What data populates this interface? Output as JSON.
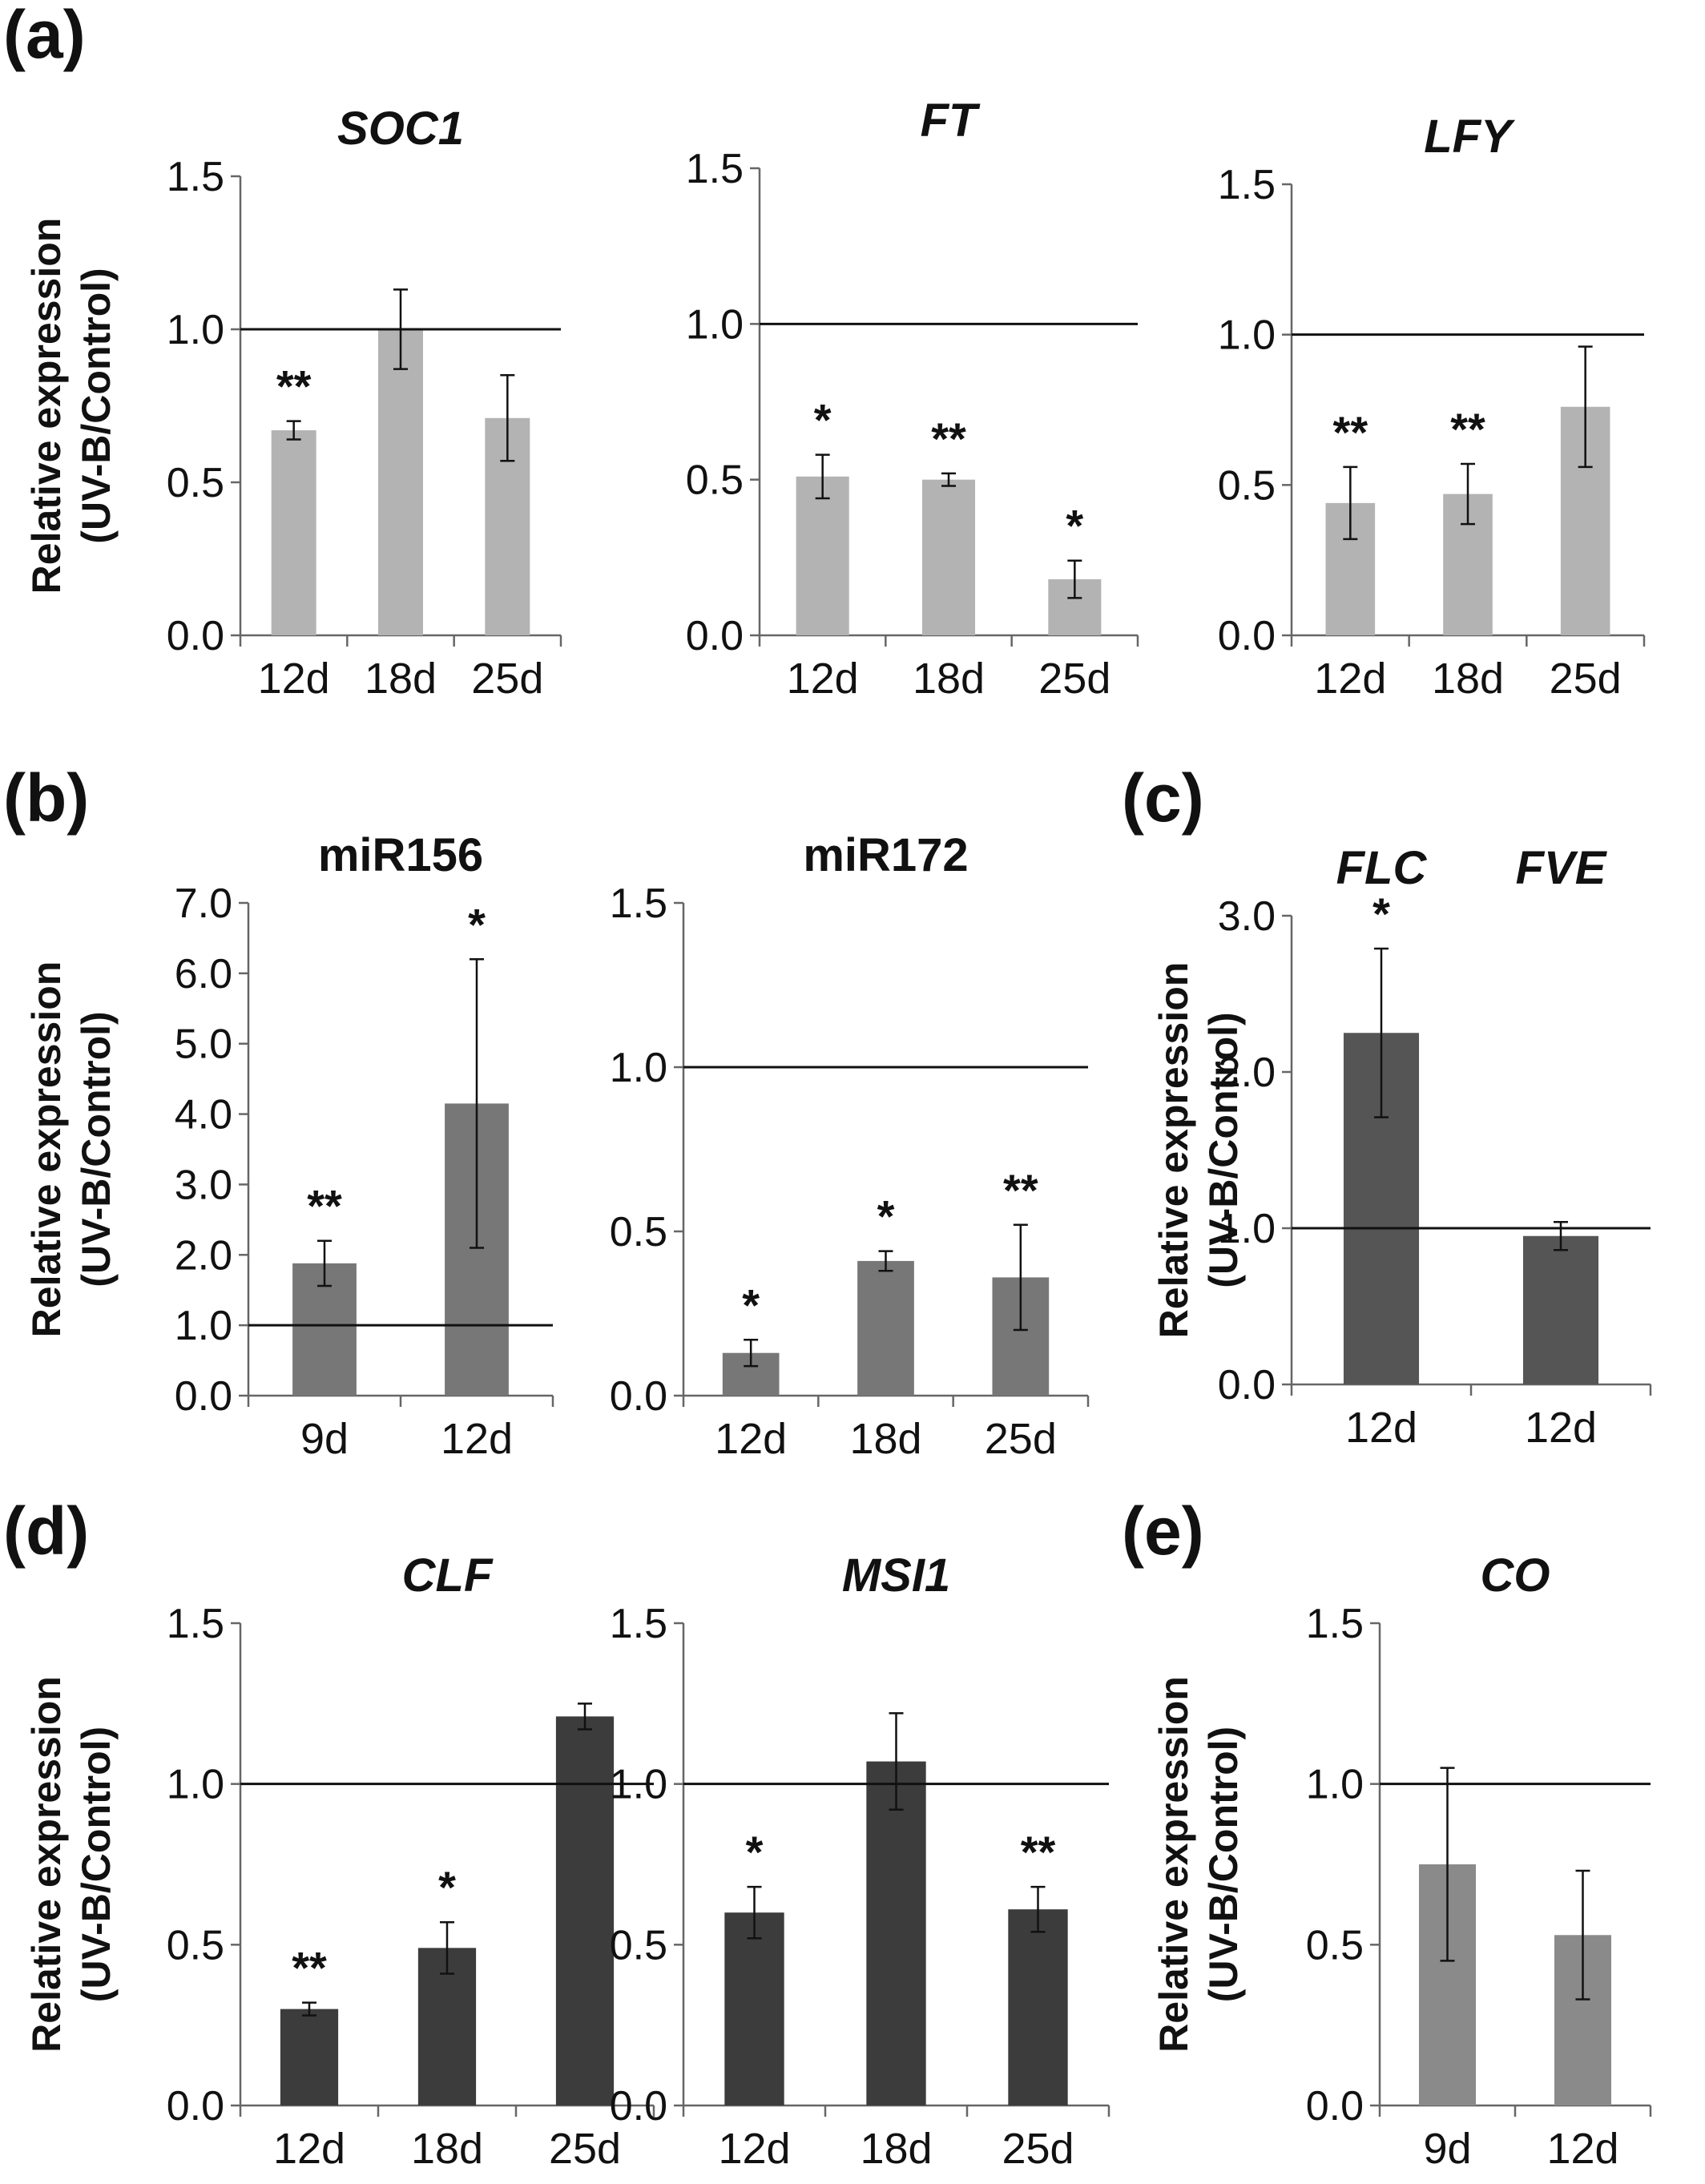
{
  "panels": [
    {
      "label": "(a)"
    },
    {
      "label": "(b)"
    },
    {
      "label": "(c)"
    },
    {
      "label": "(d)"
    },
    {
      "label": "(e)"
    }
  ],
  "y_axis_title": [
    "Relative expression",
    "(UV-B/Control)"
  ],
  "colors": {
    "light_gray": "#b3b3b3",
    "mid_gray": "#777777",
    "dark_gray": "#555555",
    "darker_gray": "#3c3c3c",
    "co_gray": "#8a8a8a",
    "axis": "#666666",
    "reference_line": "#111111"
  },
  "chart_data": [
    {
      "panel": "(a)",
      "type": "bar",
      "title": "SOC1",
      "title_italic": true,
      "categories": [
        "12d",
        "18d",
        "25d"
      ],
      "values": [
        0.67,
        1.0,
        0.71
      ],
      "errors": [
        0.03,
        0.13,
        0.14
      ],
      "significance": [
        "**",
        "",
        ""
      ],
      "yticks": [
        "0.0",
        "0.5",
        "1.0",
        "1.5"
      ],
      "ylim": [
        0,
        1.5
      ],
      "reference_line": 1.0,
      "color": "#b3b3b3"
    },
    {
      "panel": "(a)",
      "type": "bar",
      "title": "FT",
      "title_italic": true,
      "categories": [
        "12d",
        "18d",
        "25d"
      ],
      "values": [
        0.51,
        0.5,
        0.18
      ],
      "errors": [
        0.07,
        0.02,
        0.06
      ],
      "significance": [
        "*",
        "**",
        "*"
      ],
      "yticks": [
        "0.0",
        "0.5",
        "1.0",
        "1.5"
      ],
      "ylim": [
        0,
        1.5
      ],
      "reference_line": 1.0,
      "color": "#b3b3b3"
    },
    {
      "panel": "(a)",
      "type": "bar",
      "title": "LFY",
      "title_italic": true,
      "categories": [
        "12d",
        "18d",
        "25d"
      ],
      "values": [
        0.44,
        0.47,
        0.76
      ],
      "errors": [
        0.12,
        0.1,
        0.2
      ],
      "significance": [
        "**",
        "**",
        ""
      ],
      "yticks": [
        "0.0",
        "0.5",
        "1.0",
        "1.5"
      ],
      "ylim": [
        0,
        1.5
      ],
      "reference_line": 1.0,
      "color": "#b3b3b3"
    },
    {
      "panel": "(b)",
      "type": "bar",
      "title": "miR156",
      "title_italic": false,
      "categories": [
        "9d",
        "12d"
      ],
      "values": [
        1.88,
        4.15
      ],
      "errors": [
        0.32,
        2.05
      ],
      "significance": [
        "**",
        "*"
      ],
      "yticks": [
        "0.0",
        "1.0",
        "2.0",
        "3.0",
        "4.0",
        "5.0",
        "6.0",
        "7.0"
      ],
      "ylim": [
        0,
        7
      ],
      "reference_line": 1.0,
      "color": "#777777"
    },
    {
      "panel": "(b)",
      "type": "bar",
      "title": "miR172",
      "title_italic": false,
      "categories": [
        "12d",
        "18d",
        "25d"
      ],
      "values": [
        0.13,
        0.41,
        0.36
      ],
      "errors": [
        0.04,
        0.03,
        0.16
      ],
      "significance": [
        "*",
        "*",
        "**"
      ],
      "yticks": [
        "0.0",
        "0.5",
        "1.0",
        "1.5"
      ],
      "ylim": [
        0,
        1.5
      ],
      "reference_line": 1.0,
      "color": "#777777"
    },
    {
      "panel": "(c)",
      "type": "bar",
      "title": "FLC",
      "title2": "FVE",
      "title_italic": true,
      "categories": [
        "12d",
        "12d"
      ],
      "values": [
        2.25,
        0.95
      ],
      "errors": [
        0.54,
        0.09
      ],
      "significance": [
        "*",
        ""
      ],
      "yticks": [
        "0.0",
        "1.0",
        "2.0",
        "3.0"
      ],
      "ylim": [
        0,
        3
      ],
      "reference_line": 1.0,
      "color": "#555555"
    },
    {
      "panel": "(d)",
      "type": "bar",
      "title": "CLF",
      "title_italic": true,
      "categories": [
        "12d",
        "18d",
        "25d"
      ],
      "values": [
        0.3,
        0.49,
        1.21
      ],
      "errors": [
        0.02,
        0.08,
        0.04
      ],
      "significance": [
        "**",
        "*",
        ""
      ],
      "yticks": [
        "0.0",
        "0.5",
        "1.0",
        "1.5"
      ],
      "ylim": [
        0,
        1.5
      ],
      "reference_line": 1.0,
      "color": "#3c3c3c"
    },
    {
      "panel": "(d)",
      "type": "bar",
      "title": "MSI1",
      "title_italic": true,
      "categories": [
        "12d",
        "18d",
        "25d"
      ],
      "values": [
        0.6,
        1.07,
        0.61
      ],
      "errors": [
        0.08,
        0.15,
        0.07
      ],
      "significance": [
        "*",
        "",
        "**"
      ],
      "yticks": [
        "0.0",
        "0.5",
        "1.0",
        "1.5"
      ],
      "ylim": [
        0,
        1.5
      ],
      "reference_line": 1.0,
      "color": "#3c3c3c"
    },
    {
      "panel": "(e)",
      "type": "bar",
      "title": "CO",
      "title_italic": true,
      "categories": [
        "9d",
        "12d"
      ],
      "values": [
        0.75,
        0.53
      ],
      "errors": [
        0.3,
        0.2
      ],
      "significance": [
        "",
        ""
      ],
      "yticks": [
        "0.0",
        "0.5",
        "1.0",
        "1.5"
      ],
      "ylim": [
        0,
        1.5
      ],
      "reference_line": 1.0,
      "color": "#8a8a8a"
    }
  ]
}
